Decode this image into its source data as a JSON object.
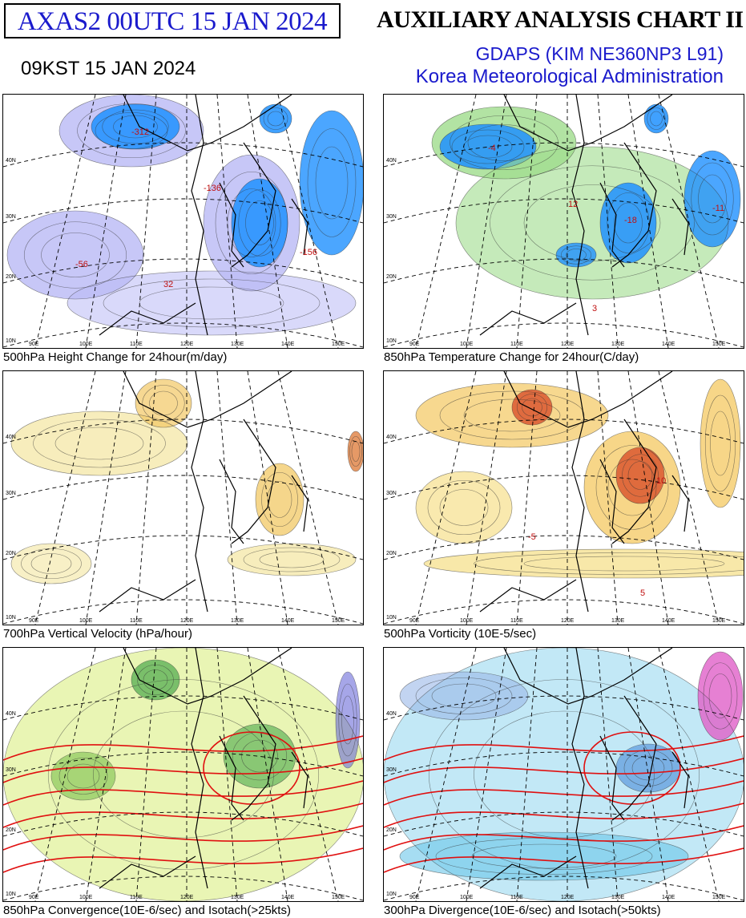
{
  "header": {
    "code": "AXAS2  00UTC 15 JAN 2024",
    "title": "AUXILIARY ANALYSIS CHART II",
    "model": "GDAPS (KIM NE360NP3 L91)",
    "agency": "Korea Meteorological Administration",
    "valid_time": "09KST 15 JAN 2024"
  },
  "panels": [
    {
      "caption": "500hPa Height Change for 24hour(m/day)",
      "scheme": "height",
      "labels": [
        "-312",
        "-56",
        "32",
        "-136",
        "-156"
      ]
    },
    {
      "caption": "850hPa Temperature Change for 24hour(C/day)",
      "scheme": "temp",
      "labels": [
        "-11",
        "-18",
        "-4",
        "12",
        "3"
      ]
    },
    {
      "caption": "700hPa Vertical Velocity (hPa/hour)",
      "scheme": "vvel",
      "labels": []
    },
    {
      "caption": "500hPa Vorticity (10E-5/sec)",
      "scheme": "vort",
      "labels": [
        "10",
        "-5",
        "5"
      ]
    },
    {
      "caption": "850hPa Convergence(10E-6/sec) and Isotach(>25kts)",
      "scheme": "conv",
      "labels": []
    },
    {
      "caption": "300hPa Divergence(10E-6/sec) and Isotach(>50kts)",
      "scheme": "div",
      "labels": []
    }
  ],
  "axis_labels": {
    "lat": [
      "40N",
      "30N",
      "20N",
      "10N"
    ],
    "lon": [
      "90E",
      "100E",
      "110E",
      "120E",
      "130E",
      "140E",
      "150E"
    ]
  },
  "colors": {
    "header_blue": "#1a1acc",
    "height_fill": "#b9b9f5",
    "height_deep": "#1e90ff",
    "temp_fill": "#9fdc8c",
    "temp_deep": "#1e90ff",
    "vvel_fill": "#f4e6a0",
    "vort_fill": "#f4c860",
    "vort_deep": "#d8502a",
    "conv_fill": "#d4ec6a",
    "div_fill": "#8fd6ee",
    "isotach": "#e01010"
  }
}
